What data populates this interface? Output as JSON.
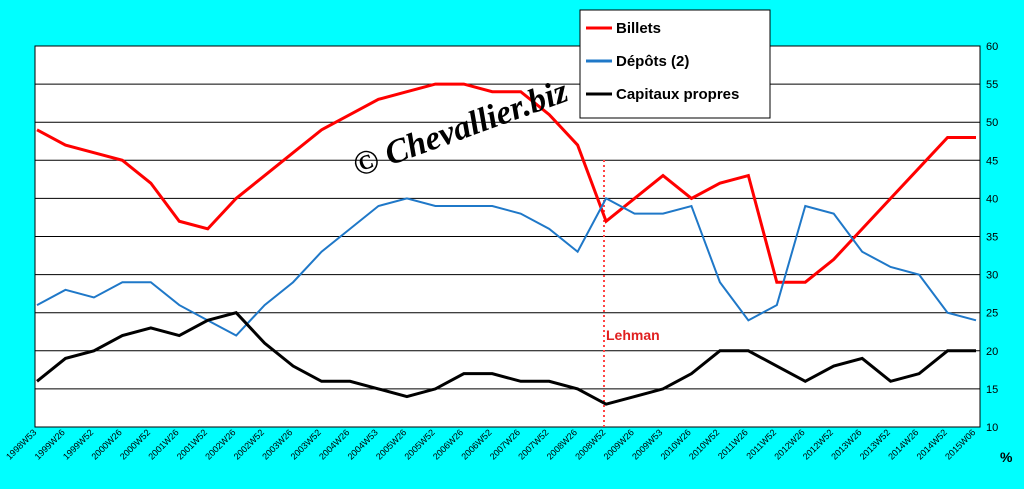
{
  "chart_data": {
    "type": "line",
    "watermark": "© Chevallier.biz",
    "annotation": "Lehman",
    "y_unit_label": "%",
    "categories": [
      "1998W53",
      "1999W26",
      "1999W52",
      "2000W26",
      "2000W52",
      "2001W26",
      "2001W52",
      "2002W26",
      "2002W52",
      "2003W26",
      "2003W52",
      "2004W26",
      "2004W53",
      "2005W26",
      "2005W52",
      "2006W26",
      "2006W52",
      "2007W26",
      "2007W52",
      "2008W26",
      "2008W52",
      "2009W26",
      "2009W53",
      "2010W26",
      "2010W52",
      "2011W26",
      "2011W52",
      "2012W26",
      "2012W52",
      "2013W26",
      "2013W52",
      "2014W26",
      "2014W52",
      "2015W06"
    ],
    "series": [
      {
        "name": "Billets",
        "color": "#ff0000",
        "values": [
          49,
          47,
          46,
          45,
          42,
          37,
          36,
          40,
          43,
          46,
          49,
          51,
          53,
          54,
          55,
          55,
          54,
          54,
          51,
          47,
          37,
          40,
          43,
          40,
          42,
          43,
          29,
          29,
          32,
          36,
          40,
          44,
          48,
          48
        ]
      },
      {
        "name": "Dépôts (2)",
        "color": "#1f78c8",
        "values": [
          26,
          28,
          27,
          29,
          29,
          26,
          24,
          22,
          26,
          29,
          33,
          36,
          39,
          40,
          39,
          39,
          39,
          38,
          36,
          33,
          40,
          38,
          38,
          39,
          29,
          24,
          26,
          39,
          38,
          33,
          31,
          30,
          25,
          24
        ]
      },
      {
        "name": "Capitaux propres",
        "color": "#000000",
        "values": [
          16,
          19,
          20,
          22,
          23,
          22,
          24,
          25,
          21,
          18,
          16,
          16,
          15,
          14,
          15,
          17,
          17,
          16,
          16,
          15,
          13,
          14,
          15,
          17,
          20,
          20,
          18,
          16,
          18,
          19,
          16,
          17,
          20,
          20
        ]
      }
    ],
    "ylim": [
      10,
      60
    ],
    "yticks": [
      10,
      15,
      20,
      25,
      30,
      35,
      40,
      45,
      50,
      55,
      60
    ],
    "grid": true
  }
}
